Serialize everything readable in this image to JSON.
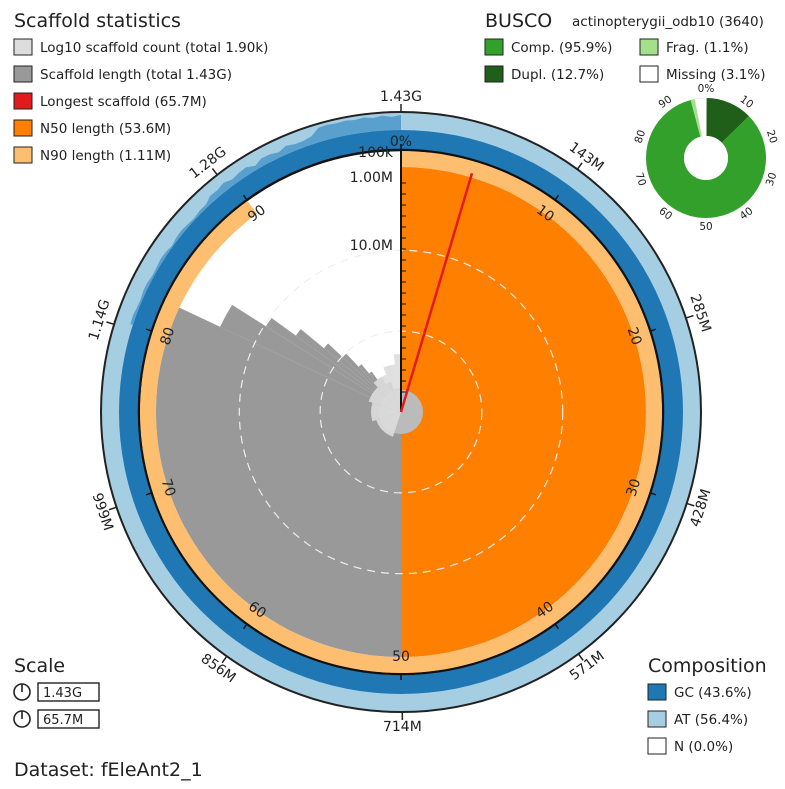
{
  "scaffold_stats": {
    "title": "Scaffold statistics",
    "legend": [
      {
        "key": "log10",
        "label": "Log10 scaffold count (total 1.90k)",
        "color": "#dddddd"
      },
      {
        "key": "length",
        "label": "Scaffold length (total 1.43G)",
        "color": "#999999"
      },
      {
        "key": "longest",
        "label": "Longest scaffold (65.7M)",
        "color": "#e31a1c"
      },
      {
        "key": "n50",
        "label": "N50 length (53.6M)",
        "color": "#ff7f00"
      },
      {
        "key": "n90",
        "label": "N90 length (1.11M)",
        "color": "#fdbf6f"
      }
    ]
  },
  "busco": {
    "title": "BUSCO",
    "lineage": "actinopterygii_odb10 (3640)",
    "legend": [
      {
        "key": "comp",
        "label": "Comp. (95.9%)",
        "color": "#33a02c"
      },
      {
        "key": "frag",
        "label": "Frag. (1.1%)",
        "color": "#a3e089"
      },
      {
        "key": "dupl",
        "label": "Dupl. (12.7%)",
        "color": "#1f5f1a"
      },
      {
        "key": "missing",
        "label": "Missing (3.1%)",
        "color": "#ffffff"
      }
    ]
  },
  "scale": {
    "title": "Scale",
    "items": [
      {
        "label": "1.43G"
      },
      {
        "label": "65.7M"
      }
    ]
  },
  "composition": {
    "title": "Composition",
    "legend": [
      {
        "key": "gc",
        "label": "GC (43.6%)",
        "color": "#1f78b4"
      },
      {
        "key": "at",
        "label": "AT (56.4%)",
        "color": "#a6cee3"
      },
      {
        "key": "n",
        "label": "N (0.0%)",
        "color": "#ffffff"
      }
    ]
  },
  "dataset": {
    "label": "Dataset: fEleAnt2_1"
  },
  "chart_data": [
    {
      "type": "snail",
      "total_length_label": "1.43G",
      "total_length": 1430000000,
      "outer_ticks": [
        {
          "label": "1.43G",
          "value": 0
        },
        {
          "label": "143M",
          "value": 143000000
        },
        {
          "label": "285M",
          "value": 285000000
        },
        {
          "label": "428M",
          "value": 428000000
        },
        {
          "label": "571M",
          "value": 571000000
        },
        {
          "label": "714M",
          "value": 714000000
        },
        {
          "label": "856M",
          "value": 856000000
        },
        {
          "label": "999M",
          "value": 999000000
        },
        {
          "label": "1.14G",
          "value": 1140000000
        },
        {
          "label": "1.28G",
          "value": 1280000000
        }
      ],
      "percent_ticks": [
        {
          "label": "0%",
          "value": 0
        },
        {
          "label": "10",
          "value": 10
        },
        {
          "label": "20",
          "value": 20
        },
        {
          "label": "30",
          "value": 30
        },
        {
          "label": "40",
          "value": 40
        },
        {
          "label": "50",
          "value": 50
        },
        {
          "label": "60",
          "value": 60
        },
        {
          "label": "70",
          "value": 70
        },
        {
          "label": "80",
          "value": 80
        },
        {
          "label": "90",
          "value": 90
        }
      ],
      "radial_labels": [
        {
          "label": "100k",
          "value": 100000
        },
        {
          "label": "1.00M",
          "value": 1000000
        },
        {
          "label": "10.0M",
          "value": 10000000
        }
      ],
      "longest_scaffold": 65700000,
      "longest_scaffold_percent": 4.6,
      "n50_length": 53600000,
      "n50_end_percent": 50,
      "n90_length": 1110000,
      "n90_end_percent": 90,
      "scaffold_length_profile": [
        {
          "percent": 0,
          "length": 65700000
        },
        {
          "percent": 4.6,
          "length": 65700000
        },
        {
          "percent": 5,
          "length": 64000000
        },
        {
          "percent": 10,
          "length": 63000000
        },
        {
          "percent": 20,
          "length": 61000000
        },
        {
          "percent": 30,
          "length": 59000000
        },
        {
          "percent": 40,
          "length": 57000000
        },
        {
          "percent": 50,
          "length": 53600000
        },
        {
          "percent": 60,
          "length": 48000000
        },
        {
          "percent": 70,
          "length": 42000000
        },
        {
          "percent": 80,
          "length": 33000000
        },
        {
          "percent": 84,
          "length": 20000000
        },
        {
          "percent": 87,
          "length": 5000000
        },
        {
          "percent": 90,
          "length": 1110000
        },
        {
          "percent": 93,
          "length": 400000
        },
        {
          "percent": 96,
          "length": 200000
        },
        {
          "percent": 100,
          "length": 100000
        }
      ],
      "gc_percent": 43.6,
      "at_percent": 56.4,
      "n_percent": 0.0
    },
    {
      "type": "pie",
      "title": "BUSCO",
      "ticks": [
        "0%",
        "10",
        "20",
        "30",
        "40",
        "50",
        "60",
        "70",
        "80",
        "90"
      ],
      "slices": [
        {
          "name": "Dupl.",
          "value": 12.7,
          "color": "#1f5f1a"
        },
        {
          "name": "Comp.",
          "value": 83.2,
          "color": "#33a02c"
        },
        {
          "name": "Frag.",
          "value": 1.1,
          "color": "#a3e089"
        },
        {
          "name": "Missing",
          "value": 3.1,
          "color": "#ffffff"
        }
      ]
    }
  ]
}
